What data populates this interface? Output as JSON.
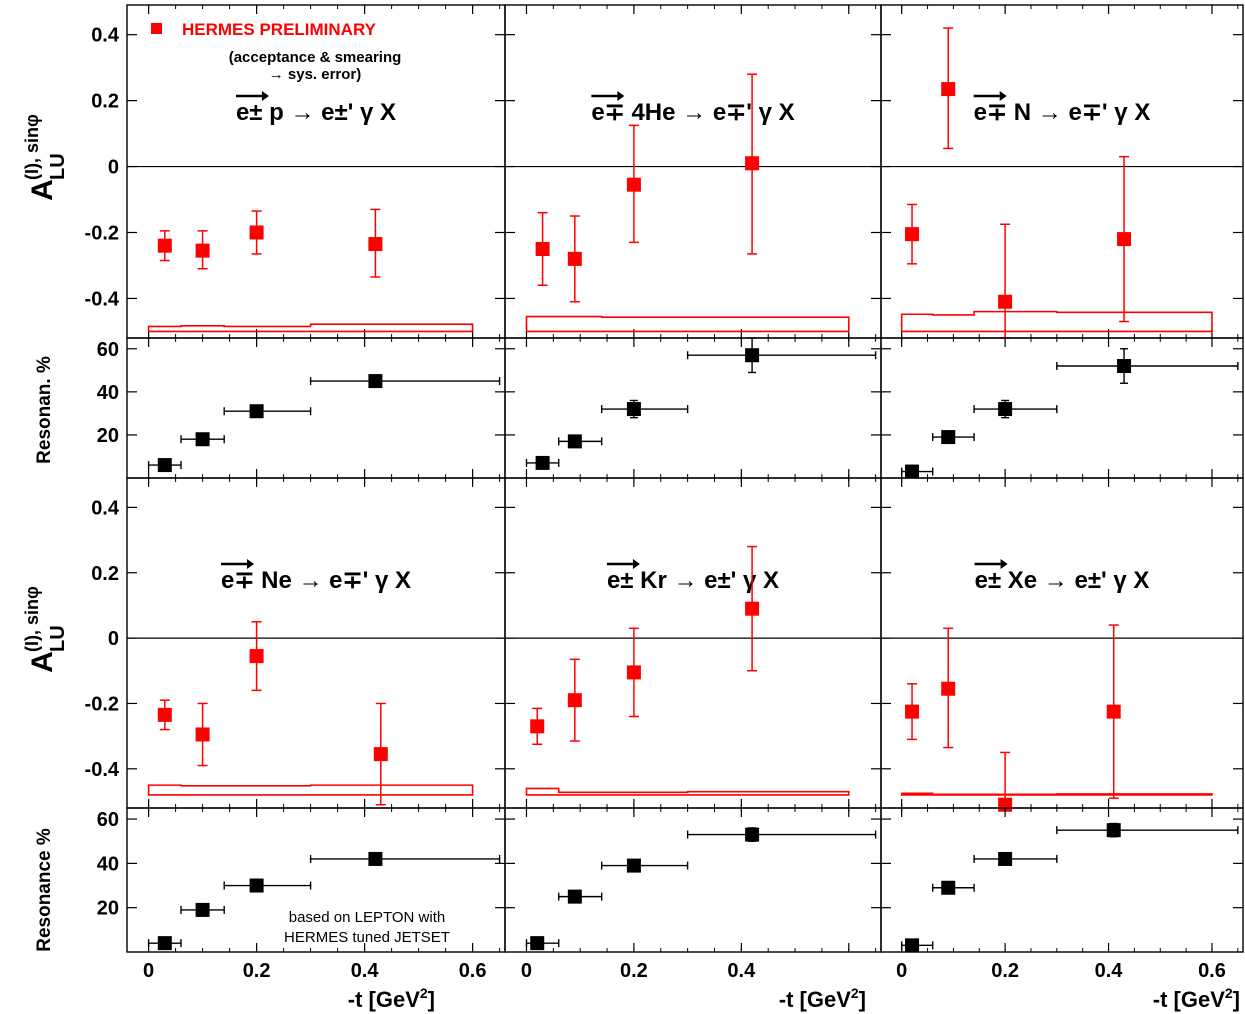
{
  "figure": {
    "asym_ylabel": "A",
    "asym_ylabel_sub": "LU",
    "asym_ylabel_sup": "(I), sinφ",
    "res_ylabel_top": "Resonan. %",
    "res_ylabel_bottom": "Resonance %",
    "xlabel": "-t [GeV",
    "xlabel_sup": "2",
    "xlabel_end": "]",
    "legend_label": "HERMES PRELIMINARY",
    "legend_note_line1": "(acceptance & smearing",
    "legend_note_line2": "→ sys. error)",
    "model_note_line1": "based on LEPTON with",
    "model_note_line2": "HERMES tuned JETSET",
    "colors": {
      "asymmetry": "#ff0000",
      "resonance": "#000000",
      "frame": "#000000"
    }
  },
  "chart_data": [
    {
      "type": "scatter",
      "quantity": "asymmetry",
      "target": "p",
      "title": "e± p → e±' γ X",
      "xlim": [
        -0.04,
        0.66
      ],
      "ylim": [
        -0.52,
        0.49
      ],
      "yticks": [
        "-0.4",
        "-0.2",
        "0",
        "0.2",
        "0.4"
      ],
      "points": [
        {
          "x": 0.03,
          "y": -0.24,
          "elo": 0.045,
          "ehi": 0.045
        },
        {
          "x": 0.1,
          "y": -0.255,
          "elo": 0.055,
          "ehi": 0.06
        },
        {
          "x": 0.2,
          "y": -0.2,
          "elo": 0.065,
          "ehi": 0.065
        },
        {
          "x": 0.42,
          "y": -0.235,
          "elo": 0.1,
          "ehi": 0.105
        }
      ],
      "sys_band": [
        {
          "x0": 0.0,
          "x1": 0.06,
          "lo": -0.5,
          "hi": -0.485
        },
        {
          "x0": 0.06,
          "x1": 0.14,
          "lo": -0.5,
          "hi": -0.483
        },
        {
          "x0": 0.14,
          "x1": 0.3,
          "lo": -0.5,
          "hi": -0.485
        },
        {
          "x0": 0.3,
          "x1": 0.6,
          "lo": -0.5,
          "hi": -0.478
        }
      ]
    },
    {
      "type": "scatter",
      "quantity": "asymmetry",
      "target": "4He",
      "title": "e∓ 4He → e∓' γ X",
      "xlim": [
        -0.04,
        0.66
      ],
      "ylim": [
        -0.52,
        0.49
      ],
      "points": [
        {
          "x": 0.03,
          "y": -0.25,
          "elo": 0.11,
          "ehi": 0.11
        },
        {
          "x": 0.09,
          "y": -0.28,
          "elo": 0.13,
          "ehi": 0.13
        },
        {
          "x": 0.2,
          "y": -0.055,
          "elo": 0.175,
          "ehi": 0.18
        },
        {
          "x": 0.42,
          "y": 0.01,
          "elo": 0.275,
          "ehi": 0.27
        }
      ],
      "sys_band": [
        {
          "x0": 0.0,
          "x1": 0.06,
          "lo": -0.5,
          "hi": -0.455
        },
        {
          "x0": 0.06,
          "x1": 0.14,
          "lo": -0.5,
          "hi": -0.455
        },
        {
          "x0": 0.14,
          "x1": 0.3,
          "lo": -0.5,
          "hi": -0.457
        },
        {
          "x0": 0.3,
          "x1": 0.6,
          "lo": -0.5,
          "hi": -0.457
        }
      ]
    },
    {
      "type": "scatter",
      "quantity": "asymmetry",
      "target": "N",
      "title": "e∓ N → e∓' γ X",
      "xlim": [
        -0.04,
        0.66
      ],
      "ylim": [
        -0.52,
        0.49
      ],
      "points": [
        {
          "x": 0.02,
          "y": -0.205,
          "elo": 0.09,
          "ehi": 0.09
        },
        {
          "x": 0.09,
          "y": 0.235,
          "elo": 0.18,
          "ehi": 0.185
        },
        {
          "x": 0.2,
          "y": -0.41,
          "elo": 0.11,
          "ehi": 0.235
        },
        {
          "x": 0.43,
          "y": -0.22,
          "elo": 0.25,
          "ehi": 0.25
        }
      ],
      "sys_band": [
        {
          "x0": 0.0,
          "x1": 0.06,
          "lo": -0.5,
          "hi": -0.448
        },
        {
          "x0": 0.06,
          "x1": 0.14,
          "lo": -0.5,
          "hi": -0.45
        },
        {
          "x0": 0.14,
          "x1": 0.3,
          "lo": -0.5,
          "hi": -0.44
        },
        {
          "x0": 0.3,
          "x1": 0.6,
          "lo": -0.5,
          "hi": -0.442
        }
      ]
    },
    {
      "type": "scatter",
      "quantity": "resonance",
      "target": "p",
      "xlim": [
        -0.04,
        0.66
      ],
      "ylim": [
        0,
        65
      ],
      "yticks": [
        "20",
        "40",
        "60"
      ],
      "points": [
        {
          "x": 0.03,
          "y": 6,
          "xlo": 0.0,
          "xhi": 0.06,
          "elo": 1,
          "ehi": 1
        },
        {
          "x": 0.1,
          "y": 18,
          "xlo": 0.06,
          "xhi": 0.14,
          "elo": 1,
          "ehi": 1
        },
        {
          "x": 0.2,
          "y": 31,
          "xlo": 0.14,
          "xhi": 0.3,
          "elo": 1,
          "ehi": 1
        },
        {
          "x": 0.42,
          "y": 45,
          "xlo": 0.3,
          "xhi": 0.65,
          "elo": 1,
          "ehi": 1
        }
      ]
    },
    {
      "type": "scatter",
      "quantity": "resonance",
      "target": "4He",
      "xlim": [
        -0.04,
        0.66
      ],
      "ylim": [
        0,
        65
      ],
      "points": [
        {
          "x": 0.03,
          "y": 7,
          "xlo": 0.0,
          "xhi": 0.06,
          "elo": 1,
          "ehi": 1
        },
        {
          "x": 0.09,
          "y": 17,
          "xlo": 0.06,
          "xhi": 0.14,
          "elo": 1,
          "ehi": 1
        },
        {
          "x": 0.2,
          "y": 32,
          "xlo": 0.14,
          "xhi": 0.3,
          "elo": 4,
          "ehi": 4
        },
        {
          "x": 0.42,
          "y": 57,
          "xlo": 0.3,
          "xhi": 0.65,
          "elo": 8,
          "ehi": 8
        }
      ]
    },
    {
      "type": "scatter",
      "quantity": "resonance",
      "target": "N",
      "xlim": [
        -0.04,
        0.66
      ],
      "ylim": [
        0,
        65
      ],
      "points": [
        {
          "x": 0.02,
          "y": 3,
          "xlo": 0.0,
          "xhi": 0.06,
          "elo": 1,
          "ehi": 1
        },
        {
          "x": 0.09,
          "y": 19,
          "xlo": 0.06,
          "xhi": 0.14,
          "elo": 1,
          "ehi": 1
        },
        {
          "x": 0.2,
          "y": 32,
          "xlo": 0.14,
          "xhi": 0.3,
          "elo": 4,
          "ehi": 4
        },
        {
          "x": 0.43,
          "y": 52,
          "xlo": 0.3,
          "xhi": 0.65,
          "elo": 8,
          "ehi": 8
        }
      ]
    },
    {
      "type": "scatter",
      "quantity": "asymmetry",
      "target": "Ne",
      "title": "e∓ Ne → e∓' γ X",
      "xlim": [
        -0.04,
        0.66
      ],
      "ylim": [
        -0.52,
        0.49
      ],
      "yticks": [
        "-0.4",
        "-0.2",
        "0",
        "0.2",
        "0.4"
      ],
      "points": [
        {
          "x": 0.03,
          "y": -0.235,
          "elo": 0.045,
          "ehi": 0.045
        },
        {
          "x": 0.1,
          "y": -0.295,
          "elo": 0.095,
          "ehi": 0.095
        },
        {
          "x": 0.2,
          "y": -0.055,
          "elo": 0.105,
          "ehi": 0.105
        },
        {
          "x": 0.43,
          "y": -0.355,
          "elo": 0.155,
          "ehi": 0.155
        }
      ],
      "sys_band": [
        {
          "x0": 0.0,
          "x1": 0.06,
          "lo": -0.48,
          "hi": -0.45
        },
        {
          "x0": 0.06,
          "x1": 0.14,
          "lo": -0.48,
          "hi": -0.452
        },
        {
          "x0": 0.14,
          "x1": 0.3,
          "lo": -0.48,
          "hi": -0.452
        },
        {
          "x0": 0.3,
          "x1": 0.6,
          "lo": -0.48,
          "hi": -0.45
        }
      ]
    },
    {
      "type": "scatter",
      "quantity": "asymmetry",
      "target": "Kr",
      "title": "e± Kr → e±' γ X",
      "xlim": [
        -0.04,
        0.66
      ],
      "ylim": [
        -0.52,
        0.49
      ],
      "points": [
        {
          "x": 0.02,
          "y": -0.27,
          "elo": 0.055,
          "ehi": 0.055
        },
        {
          "x": 0.09,
          "y": -0.19,
          "elo": 0.125,
          "ehi": 0.125
        },
        {
          "x": 0.2,
          "y": -0.105,
          "elo": 0.135,
          "ehi": 0.135
        },
        {
          "x": 0.42,
          "y": 0.09,
          "elo": 0.19,
          "ehi": 0.19
        }
      ],
      "sys_band": [
        {
          "x0": 0.0,
          "x1": 0.06,
          "lo": -0.48,
          "hi": -0.46
        },
        {
          "x0": 0.06,
          "x1": 0.14,
          "lo": -0.48,
          "hi": -0.472
        },
        {
          "x0": 0.14,
          "x1": 0.3,
          "lo": -0.48,
          "hi": -0.472
        },
        {
          "x0": 0.3,
          "x1": 0.6,
          "lo": -0.48,
          "hi": -0.47
        }
      ]
    },
    {
      "type": "scatter",
      "quantity": "asymmetry",
      "target": "Xe",
      "title": "e± Xe → e±' γ X",
      "xlim": [
        -0.04,
        0.66
      ],
      "ylim": [
        -0.52,
        0.49
      ],
      "points": [
        {
          "x": 0.02,
          "y": -0.225,
          "elo": 0.085,
          "ehi": 0.085
        },
        {
          "x": 0.09,
          "y": -0.155,
          "elo": 0.18,
          "ehi": 0.185
        },
        {
          "x": 0.2,
          "y": -0.51,
          "elo": 0.01,
          "ehi": 0.16
        },
        {
          "x": 0.41,
          "y": -0.225,
          "elo": 0.265,
          "ehi": 0.265
        }
      ],
      "sys_band": [
        {
          "x0": 0.0,
          "x1": 0.06,
          "lo": -0.48,
          "hi": -0.475
        },
        {
          "x0": 0.06,
          "x1": 0.14,
          "lo": -0.48,
          "hi": -0.478
        },
        {
          "x0": 0.14,
          "x1": 0.3,
          "lo": -0.48,
          "hi": -0.478
        },
        {
          "x0": 0.3,
          "x1": 0.6,
          "lo": -0.48,
          "hi": -0.477
        }
      ]
    },
    {
      "type": "scatter",
      "quantity": "resonance",
      "target": "Ne",
      "xlim": [
        -0.04,
        0.66
      ],
      "ylim": [
        0,
        65
      ],
      "yticks": [
        "20",
        "40",
        "60"
      ],
      "xticks": [
        "0",
        "0.2",
        "0.4",
        "0.6"
      ],
      "points": [
        {
          "x": 0.03,
          "y": 4,
          "xlo": 0.0,
          "xhi": 0.06,
          "elo": 1,
          "ehi": 1
        },
        {
          "x": 0.1,
          "y": 19,
          "xlo": 0.06,
          "xhi": 0.14,
          "elo": 1,
          "ehi": 1
        },
        {
          "x": 0.2,
          "y": 30,
          "xlo": 0.14,
          "xhi": 0.3,
          "elo": 1,
          "ehi": 1
        },
        {
          "x": 0.42,
          "y": 42,
          "xlo": 0.3,
          "xhi": 0.65,
          "elo": 1,
          "ehi": 1
        }
      ]
    },
    {
      "type": "scatter",
      "quantity": "resonance",
      "target": "Kr",
      "xlim": [
        -0.04,
        0.66
      ],
      "ylim": [
        0,
        65
      ],
      "xticks": [
        "0",
        "0.2",
        "0.4"
      ],
      "points": [
        {
          "x": 0.02,
          "y": 4,
          "xlo": 0.0,
          "xhi": 0.06,
          "elo": 1,
          "ehi": 1
        },
        {
          "x": 0.09,
          "y": 25,
          "xlo": 0.06,
          "xhi": 0.14,
          "elo": 1,
          "ehi": 1
        },
        {
          "x": 0.2,
          "y": 39,
          "xlo": 0.14,
          "xhi": 0.3,
          "elo": 1,
          "ehi": 1
        },
        {
          "x": 0.42,
          "y": 53,
          "xlo": 0.3,
          "xhi": 0.65,
          "elo": 3,
          "ehi": 3
        }
      ]
    },
    {
      "type": "scatter",
      "quantity": "resonance",
      "target": "Xe",
      "xlim": [
        -0.04,
        0.66
      ],
      "ylim": [
        0,
        65
      ],
      "xticks": [
        "0",
        "0.2",
        "0.4",
        "0.6"
      ],
      "points": [
        {
          "x": 0.02,
          "y": 3,
          "xlo": 0.0,
          "xhi": 0.06,
          "elo": 1,
          "ehi": 1
        },
        {
          "x": 0.09,
          "y": 29,
          "xlo": 0.06,
          "xhi": 0.14,
          "elo": 1,
          "ehi": 1
        },
        {
          "x": 0.2,
          "y": 42,
          "xlo": 0.14,
          "xhi": 0.3,
          "elo": 1,
          "ehi": 1
        },
        {
          "x": 0.41,
          "y": 55,
          "xlo": 0.3,
          "xhi": 0.65,
          "elo": 3,
          "ehi": 3
        }
      ]
    }
  ]
}
